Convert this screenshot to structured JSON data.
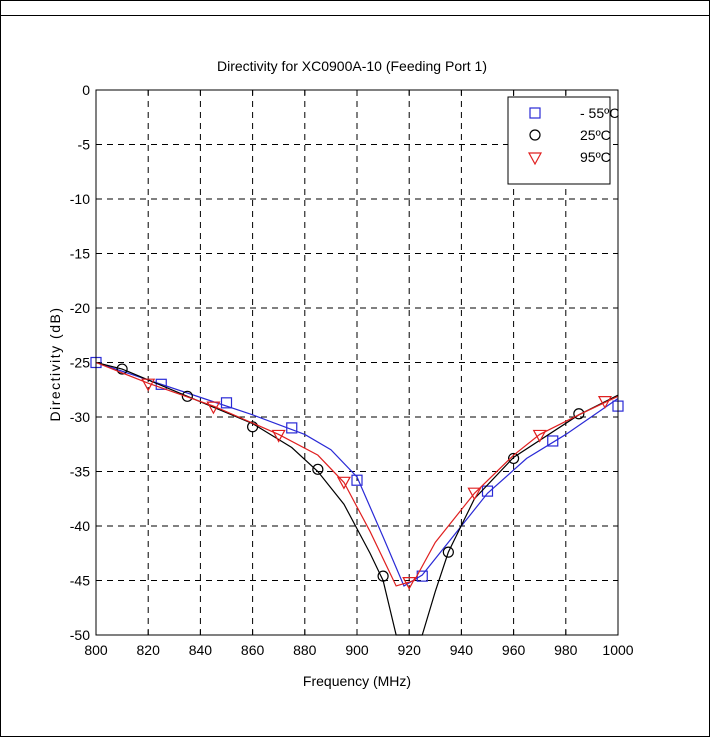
{
  "chart_data": {
    "type": "line",
    "title": "Directivity for XC0900A-10 (Feeding Port 1)",
    "xlabel": "Frequency (MHz)",
    "ylabel": "Directivity (dB)",
    "xlim": [
      800,
      1000
    ],
    "ylim": [
      -50,
      0
    ],
    "xticks": [
      800,
      820,
      840,
      860,
      880,
      900,
      920,
      940,
      960,
      980,
      1000
    ],
    "yticks": [
      0,
      -5,
      -10,
      -15,
      -20,
      -25,
      -30,
      -35,
      -40,
      -45,
      -50
    ],
    "grid": true,
    "legend_position": "top-right",
    "series": [
      {
        "name": "- 55ºC",
        "color": "#2a2ad6",
        "marker": "square",
        "line": [
          [
            800,
            -25
          ],
          [
            820,
            -26.6
          ],
          [
            840,
            -28.2
          ],
          [
            860,
            -29.8
          ],
          [
            880,
            -31.6
          ],
          [
            890,
            -33
          ],
          [
            900,
            -35.5
          ],
          [
            910,
            -41
          ],
          [
            918,
            -45.5
          ],
          [
            925,
            -44.5
          ],
          [
            935,
            -41.5
          ],
          [
            950,
            -37
          ],
          [
            965,
            -33.8
          ],
          [
            980,
            -31.6
          ],
          [
            1000,
            -28.3
          ]
        ],
        "markers": [
          [
            800,
            -25
          ],
          [
            825,
            -27
          ],
          [
            850,
            -28.7
          ],
          [
            875,
            -31
          ],
          [
            900,
            -35.8
          ],
          [
            925,
            -44.6
          ],
          [
            950,
            -36.8
          ],
          [
            975,
            -32.2
          ],
          [
            1000,
            -29
          ]
        ]
      },
      {
        "name": "25ºC",
        "color": "#000000",
        "marker": "circle",
        "line": [
          [
            800,
            -25
          ],
          [
            810,
            -25.6
          ],
          [
            835,
            -28.1
          ],
          [
            860,
            -30.6
          ],
          [
            875,
            -32.8
          ],
          [
            885,
            -35
          ],
          [
            895,
            -38
          ],
          [
            905,
            -42.5
          ],
          [
            910,
            -45
          ],
          [
            915,
            -50
          ],
          [
            925,
            -50
          ],
          [
            930,
            -46
          ],
          [
            935,
            -42.4
          ],
          [
            945,
            -37.5
          ],
          [
            960,
            -33.7
          ],
          [
            985,
            -29.8
          ],
          [
            1000,
            -28
          ]
        ],
        "markers": [
          [
            810,
            -25.6
          ],
          [
            835,
            -28.1
          ],
          [
            860,
            -30.9
          ],
          [
            885,
            -34.8
          ],
          [
            910,
            -44.6
          ],
          [
            935,
            -42.4
          ],
          [
            960,
            -33.8
          ],
          [
            985,
            -29.7
          ]
        ]
      },
      {
        "name": "95ºC",
        "color": "#e02020",
        "marker": "triangle",
        "line": [
          [
            800,
            -25
          ],
          [
            820,
            -26.9
          ],
          [
            845,
            -29
          ],
          [
            870,
            -31.6
          ],
          [
            885,
            -33.5
          ],
          [
            895,
            -36
          ],
          [
            905,
            -40.5
          ],
          [
            915,
            -45.5
          ],
          [
            922,
            -45
          ],
          [
            930,
            -41.5
          ],
          [
            945,
            -37
          ],
          [
            960,
            -33.5
          ],
          [
            970,
            -31.6
          ],
          [
            985,
            -29.8
          ],
          [
            1000,
            -28.1
          ]
        ],
        "markers": [
          [
            820,
            -26.9
          ],
          [
            845,
            -29
          ],
          [
            870,
            -31.6
          ],
          [
            895,
            -35.9
          ],
          [
            920,
            -45.1
          ],
          [
            945,
            -36.9
          ],
          [
            970,
            -31.6
          ],
          [
            995,
            -28.5
          ]
        ]
      }
    ]
  }
}
